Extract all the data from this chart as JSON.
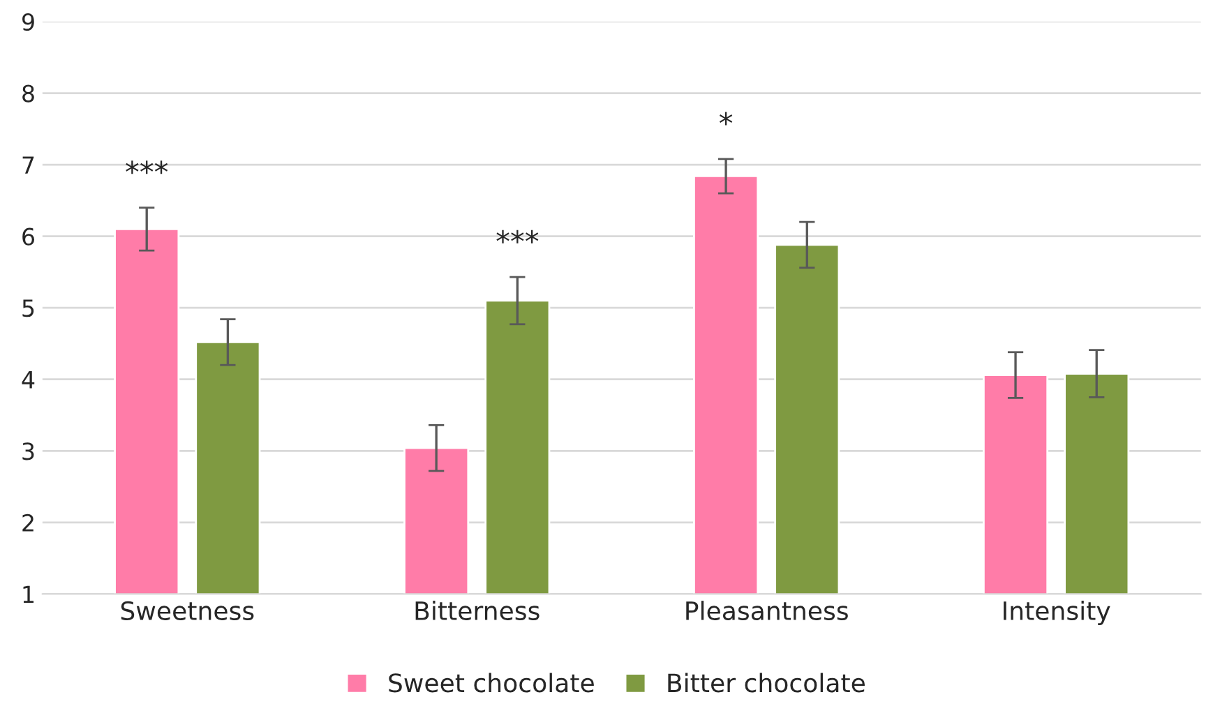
{
  "chart_data": {
    "type": "bar",
    "categories": [
      "Sweetness",
      "Bitterness",
      "Pleasantness",
      "Intensity"
    ],
    "series": [
      {
        "name": "Sweet chocolate",
        "color": "#ff7ca8",
        "values": [
          6.1,
          3.04,
          6.84,
          4.06
        ],
        "errors": [
          0.3,
          0.32,
          0.24,
          0.32
        ]
      },
      {
        "name": "Bitter chocolate",
        "color": "#7f9a41",
        "values": [
          4.52,
          5.1,
          5.88,
          4.08
        ],
        "errors": [
          0.32,
          0.33,
          0.32,
          0.33
        ]
      }
    ],
    "ylim": [
      1,
      9
    ],
    "yticks": [
      1,
      2,
      3,
      4,
      5,
      6,
      7,
      8,
      9
    ],
    "grid": "y",
    "legend": "bottom",
    "annotations": [
      "***",
      "***",
      "*"
    ]
  }
}
